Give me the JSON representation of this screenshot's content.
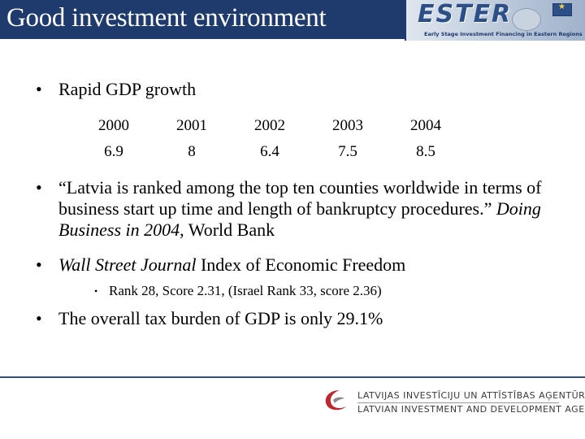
{
  "slide": {
    "title": "Good investment environment",
    "banner": {
      "logo": "ESTER",
      "subtitle": "Early Stage Investment Financing in Eastern Regions"
    },
    "bullets": {
      "gdp_heading": "Rapid GDP growth",
      "ranked_prefix": "“Latvia is ranked among the top ten counties worldwide in terms of business start up time and length of bankruptcy procedures.” ",
      "ranked_source_italic": "Doing Business in 2004",
      "ranked_suffix": ", World Bank",
      "wsj_italic": "Wall Street Journal",
      "wsj_suffix": " Index of Economic Freedom",
      "wsj_sub": "Rank 28, Score 2.31, (Israel Rank 33, score 2.36)",
      "tax": "The overall tax burden of GDP is only 29.1%"
    },
    "gdp_table": {
      "years": [
        "2000",
        "2001",
        "2002",
        "2003",
        "2004"
      ],
      "values": [
        "6.9",
        "8",
        "6.4",
        "7.5",
        "8.5"
      ]
    },
    "footer": {
      "agency_lv": "LATVIJAS INVESTĪCIJU UN ATTĪSTĪBAS AĢENTŪRA",
      "agency_en": "LATVIAN INVESTMENT AND DEVELOPMENT AGENCY"
    },
    "colors": {
      "title_bar": "#1f3a6d",
      "accent": "#2b4f86",
      "agency_red": "#c0272d"
    }
  }
}
